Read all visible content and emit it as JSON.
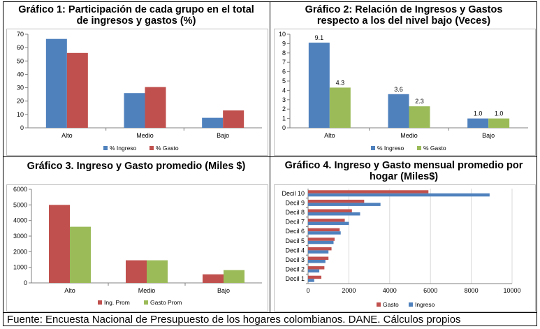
{
  "footer": "Fuente: Encuesta Nacional de Presupuesto de los hogares colombianos. DANE. Cálculos propios",
  "colors": {
    "blue": "#4f81bd",
    "red": "#c0504d",
    "green": "#9bbb59",
    "grid": "#d9d9d9",
    "axis": "#808080"
  },
  "chart_data": [
    {
      "type": "bar",
      "title": "Gráfico 1: Participación de cada grupo en el total\nde ingresos y gastos (%)",
      "categories": [
        "Alto",
        "Medio",
        "Bajo"
      ],
      "series": [
        {
          "name": "% Ingreso",
          "values": [
            66.5,
            26,
            7.5
          ]
        },
        {
          "name": "% Gasto",
          "values": [
            56,
            30.5,
            13
          ]
        }
      ],
      "ylim": [
        0,
        70
      ],
      "yticks": [
        "0",
        "10",
        "20",
        "30",
        "40",
        "50",
        "60",
        "70"
      ],
      "grid": false,
      "legend": "bottom"
    },
    {
      "type": "bar",
      "title": "Gráfico 2: Relación de Ingresos y Gastos\nrespecto a los del nivel bajo (Veces)",
      "categories": [
        "Alto",
        "Medio",
        "Bajo"
      ],
      "series": [
        {
          "name": "% Ingreso",
          "values": [
            9.1,
            3.6,
            1.0
          ],
          "labels": [
            "9.1",
            "3.6",
            "1.0"
          ]
        },
        {
          "name": "% Gasto",
          "values": [
            4.3,
            2.3,
            1.0
          ],
          "labels": [
            "4.3",
            "2.3",
            "1.0"
          ]
        }
      ],
      "ylim": [
        0,
        10
      ],
      "yticks": [
        "0",
        "1",
        "2",
        "3",
        "4",
        "5",
        "6",
        "7",
        "8",
        "9",
        "10"
      ],
      "grid": false,
      "legend": "bottom"
    },
    {
      "type": "bar",
      "title": "Gráfico 3. Ingreso y Gasto promedio (Miles $)",
      "categories": [
        "Alto",
        "Medio",
        "Bajo"
      ],
      "series": [
        {
          "name": "Ing. Prom",
          "values": [
            5000,
            1450,
            550
          ]
        },
        {
          "name": "Gasto Prom",
          "values": [
            3600,
            1450,
            820
          ]
        }
      ],
      "ylim": [
        0,
        6000
      ],
      "yticks": [
        "0",
        "1000",
        "2000",
        "3000",
        "4000",
        "5000",
        "6000"
      ],
      "grid": false,
      "legend": "bottom"
    },
    {
      "type": "bar",
      "orientation": "horizontal",
      "title": "Gráfico 4. Ingreso y Gasto mensual promedio por\nhogar (Miles$)",
      "categories": [
        "Decil 1",
        "Decil 2",
        "Decil 3",
        "Decil 4",
        "Decil 5",
        "Decil 6",
        "Decil 7",
        "Decil 8",
        "Decil 9",
        "Decil 10"
      ],
      "series": [
        {
          "name": "Gasto",
          "values": [
            650,
            800,
            1000,
            1150,
            1300,
            1550,
            1800,
            2150,
            2750,
            5900
          ]
        },
        {
          "name": "Ingreso",
          "values": [
            300,
            550,
            850,
            1000,
            1250,
            1600,
            2000,
            2550,
            3550,
            8900
          ]
        }
      ],
      "xlim": [
        0,
        10000
      ],
      "xticks": [
        "0",
        "2000",
        "4000",
        "6000",
        "8000",
        "10000"
      ],
      "grid": true,
      "legend": "bottom"
    }
  ]
}
